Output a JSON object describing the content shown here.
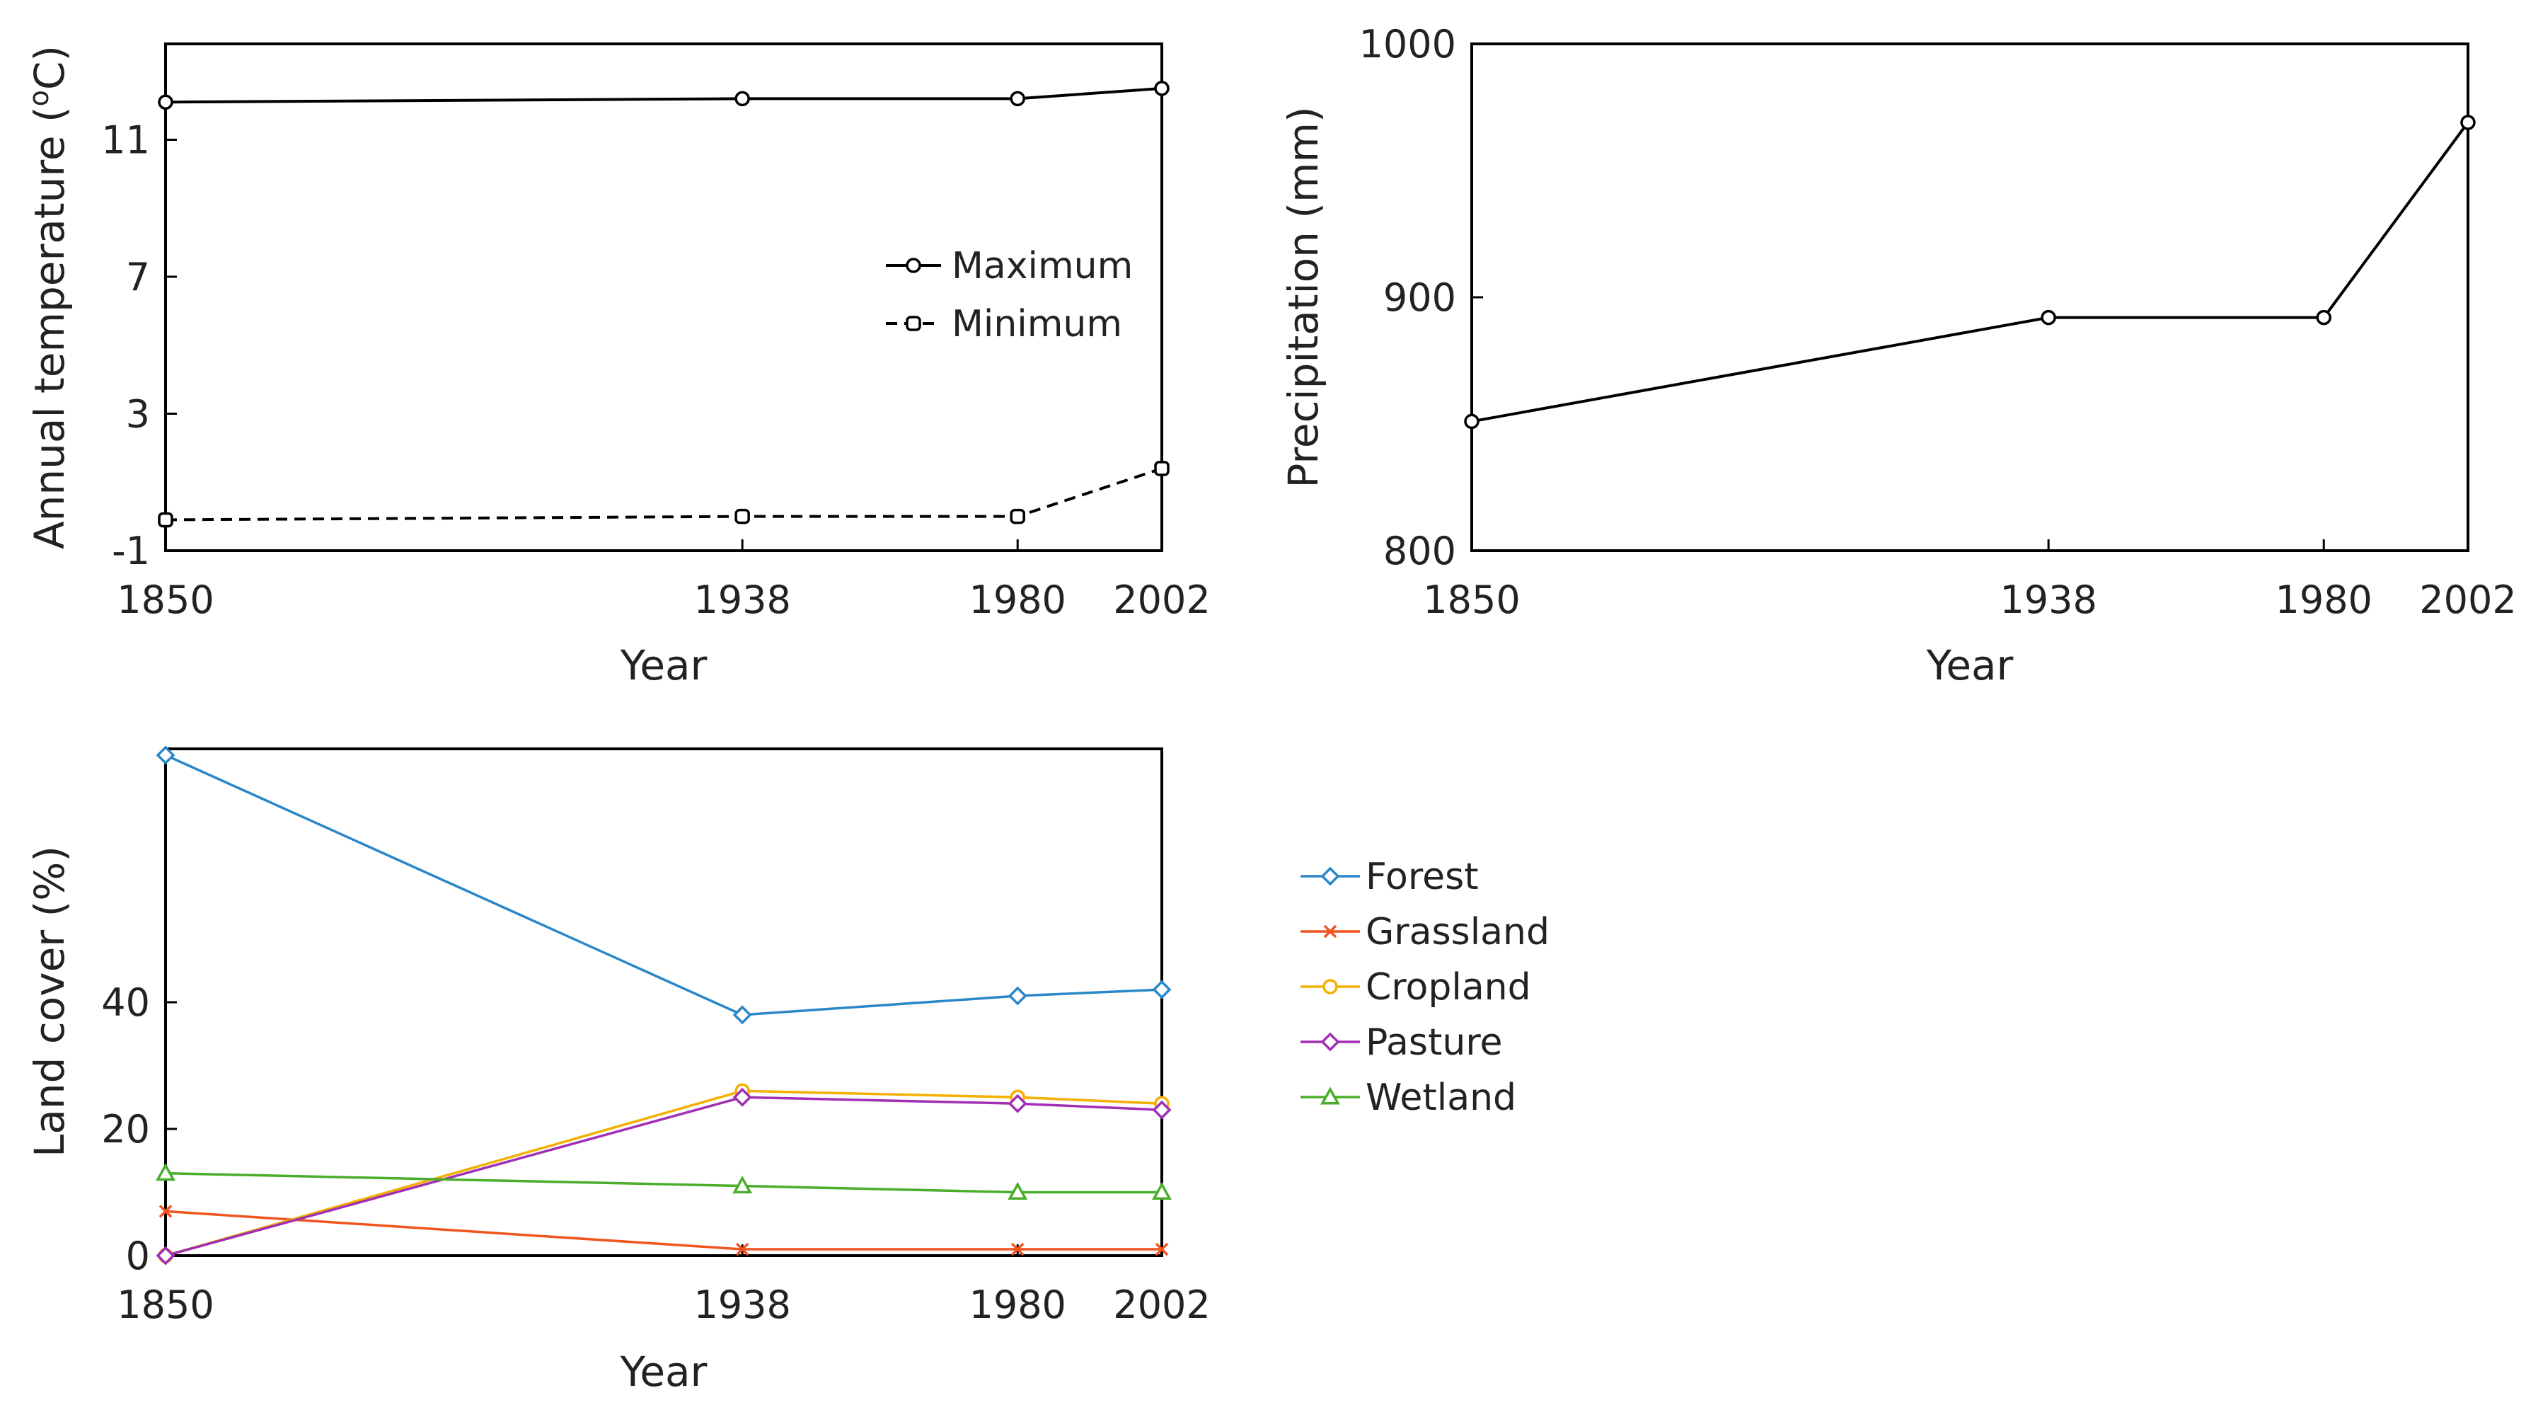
{
  "colors": {
    "axis": "#000000",
    "forest": "#2a87c8",
    "grassland": "#f0541f",
    "cropland": "#f4b000",
    "pasture": "#a02fb4",
    "wetland": "#4bad2c"
  },
  "chart_data": [
    {
      "id": "temperature",
      "type": "line",
      "title": "",
      "xlabel": "Year",
      "ylabel_prefix": "Annual temperature (",
      "ylabel_super": "o",
      "ylabel_suffix": "C)",
      "x": [
        1850,
        1938,
        1980,
        2002
      ],
      "xticks": [
        "1850",
        "1938",
        "1980",
        "2002"
      ],
      "yticks": [
        "-1",
        "3",
        "7",
        "11"
      ],
      "xlim": [
        1850,
        2002
      ],
      "ylim": [
        -1,
        13.8
      ],
      "series": [
        {
          "name": "Maximum",
          "values": [
            12.1,
            12.2,
            12.2,
            12.5
          ],
          "style": "solid",
          "marker": "circle"
        },
        {
          "name": "Minimum",
          "values": [
            -0.1,
            0.0,
            0.0,
            1.4
          ],
          "style": "dashed",
          "marker": "square"
        }
      ],
      "legend": "center-right"
    },
    {
      "id": "precipitation",
      "type": "line",
      "title": "",
      "xlabel": "Year",
      "ylabel": "Precipitation (mm)",
      "x": [
        1850,
        1938,
        1980,
        2002
      ],
      "xticks": [
        "1850",
        "1938",
        "1980",
        "2002"
      ],
      "yticks": [
        "800",
        "900",
        "1000"
      ],
      "xlim": [
        1850,
        2002
      ],
      "ylim": [
        800,
        1000
      ],
      "series": [
        {
          "name": "Precipitation",
          "values": [
            851,
            892,
            892,
            969
          ],
          "style": "solid",
          "marker": "circle"
        }
      ]
    },
    {
      "id": "landcover",
      "type": "line",
      "title": "",
      "xlabel": "Year",
      "ylabel": "Land cover (%)",
      "x": [
        1850,
        1938,
        1980,
        2002
      ],
      "xticks": [
        "1850",
        "1938",
        "1980",
        "2002"
      ],
      "yticks": [
        "0",
        "20",
        "40"
      ],
      "xlim": [
        1850,
        2002
      ],
      "ylim": [
        0,
        80
      ],
      "series": [
        {
          "name": "Forest",
          "values": [
            79,
            38,
            41,
            42
          ],
          "color": "forest",
          "marker": "diamond"
        },
        {
          "name": "Grassland",
          "values": [
            7,
            1,
            1,
            1
          ],
          "color": "grassland",
          "marker": "cross"
        },
        {
          "name": "Cropland",
          "values": [
            0,
            26,
            25,
            24
          ],
          "color": "cropland",
          "marker": "circle"
        },
        {
          "name": "Pasture",
          "values": [
            0,
            25,
            24,
            23
          ],
          "color": "pasture",
          "marker": "diamond"
        },
        {
          "name": "Wetland",
          "values": [
            13,
            11,
            10,
            10
          ],
          "color": "wetland",
          "marker": "triangle"
        }
      ],
      "legend": "right-outside"
    }
  ]
}
